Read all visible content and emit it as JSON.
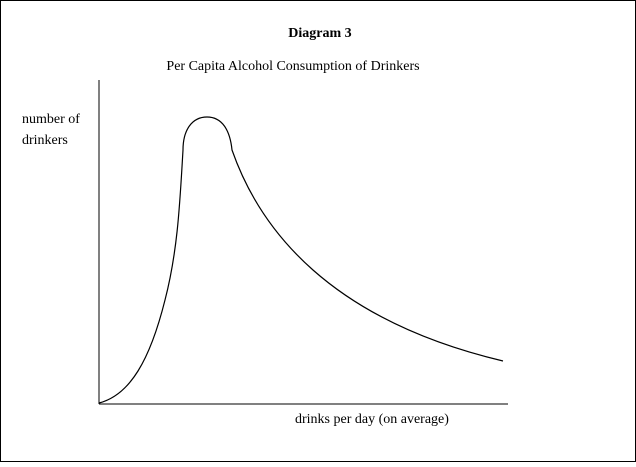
{
  "title": "Diagram 3",
  "subtitle": "Per Capita Alcohol Consumption of Drinkers",
  "y_axis_label": [
    "number of",
    "drinkers"
  ],
  "x_axis_label": "drinks per day (on average)"
}
